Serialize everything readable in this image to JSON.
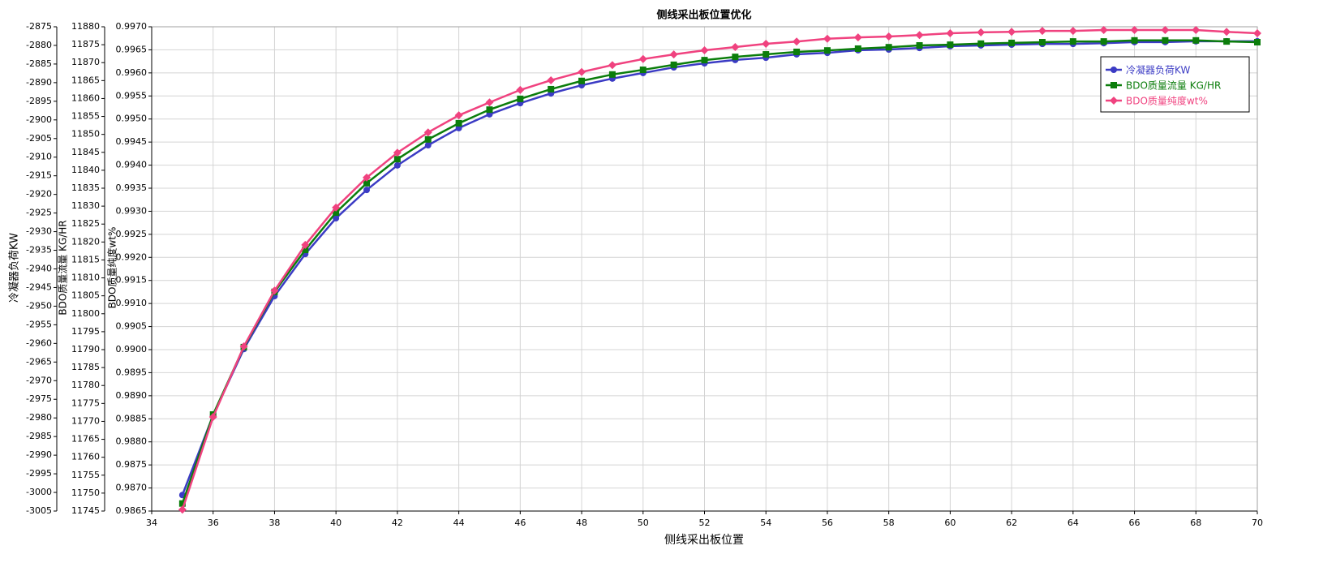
{
  "chart_data": {
    "type": "line",
    "title": "侧线采出板位置优化",
    "xlabel": "侧线采出板位置",
    "ylabel": "冷凝器负荷KW",
    "y2label": "BDO质量流量 KG/HR",
    "y3label": "BDO质量纯度wt%",
    "x": [
      35,
      36,
      37,
      38,
      39,
      40,
      41,
      42,
      43,
      44,
      45,
      46,
      47,
      48,
      49,
      50,
      51,
      52,
      53,
      54,
      55,
      56,
      57,
      58,
      59,
      60,
      61,
      62,
      63,
      64,
      65,
      66,
      67,
      68,
      69,
      70
    ],
    "series": [
      {
        "name": "冷凝器负荷KW",
        "color": "#3b3bc4",
        "marker": "circle",
        "axis": "y",
        "values": [
          -3000.7,
          -2979.3,
          -2961.5,
          -2947.3,
          -2936,
          -2926.4,
          -2918.8,
          -2912.2,
          -2906.8,
          -2902.2,
          -2898.5,
          -2895.5,
          -2892.9,
          -2890.7,
          -2888.9,
          -2887.4,
          -2885.9,
          -2884.8,
          -2883.9,
          -2883.3,
          -2882.4,
          -2882,
          -2881.3,
          -2881.1,
          -2880.7,
          -2880.2,
          -2880,
          -2879.8,
          -2879.6,
          -2879.6,
          -2879.4,
          -2879.1,
          -2879.1,
          -2878.9,
          -2878.9,
          -2878.9
        ]
      },
      {
        "name": "BDO质量流量 KG/HR",
        "color": "#0b7d0b",
        "marker": "square",
        "axis": "y2",
        "values": [
          11747.1,
          11771.9,
          11790.7,
          11806.1,
          11817.8,
          11828.2,
          11836.4,
          11843.1,
          11848.6,
          11853.1,
          11856.9,
          11859.9,
          11862.6,
          11864.9,
          11866.7,
          11868,
          11869.4,
          11870.7,
          11871.6,
          11872.3,
          11873,
          11873.4,
          11873.9,
          11874.3,
          11874.8,
          11875,
          11875.3,
          11875.5,
          11875.7,
          11875.9,
          11875.9,
          11876.2,
          11876.2,
          11876.2,
          11875.9,
          11875.7
        ]
      },
      {
        "name": "BDO质量纯度wt%",
        "color": "#f0427f",
        "marker": "diamond",
        "axis": "y3",
        "values": [
          0.98653,
          0.98854,
          0.99007,
          0.99128,
          0.99227,
          0.99308,
          0.99373,
          0.99427,
          0.99471,
          0.99508,
          0.99536,
          0.99563,
          0.99584,
          0.99602,
          0.99617,
          0.9963,
          0.9964,
          0.99649,
          0.99656,
          0.99663,
          0.99668,
          0.99674,
          0.99677,
          0.99679,
          0.99682,
          0.99686,
          0.99688,
          0.99689,
          0.99691,
          0.99691,
          0.99693,
          0.99693,
          0.99693,
          0.99693,
          0.99689,
          0.99686
        ]
      }
    ],
    "xlim": [
      34,
      70
    ],
    "xticks": [
      34,
      36,
      38,
      40,
      42,
      44,
      46,
      48,
      50,
      52,
      54,
      56,
      58,
      60,
      62,
      64,
      66,
      68,
      70
    ],
    "ylim": [
      -3005,
      -2875
    ],
    "yticks": [
      -3005,
      -3000,
      -2995,
      -2990,
      -2985,
      -2980,
      -2975,
      -2970,
      -2965,
      -2960,
      -2955,
      -2950,
      -2945,
      -2940,
      -2935,
      -2930,
      -2925,
      -2920,
      -2915,
      -2910,
      -2905,
      -2900,
      -2895,
      -2890,
      -2885,
      -2880,
      -2875
    ],
    "y2lim": [
      11745,
      11880
    ],
    "y2ticks": [
      11745,
      11750,
      11755,
      11760,
      11765,
      11770,
      11775,
      11780,
      11785,
      11790,
      11795,
      11800,
      11805,
      11810,
      11815,
      11820,
      11825,
      11830,
      11835,
      11840,
      11845,
      11850,
      11855,
      11860,
      11865,
      11870,
      11875,
      11880
    ],
    "y3lim": [
      0.9865,
      0.997
    ],
    "y3ticks": [
      0.9865,
      {
        "value": 0.987,
        "label": "0.9870"
      },
      0.9875,
      {
        "value": 0.988,
        "label": "0.9880"
      },
      0.9885,
      {
        "value": 0.989,
        "label": "0.9890"
      },
      0.9895,
      {
        "value": 0.99,
        "label": "0.9900"
      },
      0.9905,
      {
        "value": 0.991,
        "label": "0.9910"
      },
      0.9915,
      {
        "value": 0.992,
        "label": "0.9920"
      },
      0.9925,
      {
        "value": 0.993,
        "label": "0.9930"
      },
      0.9935,
      {
        "value": 0.994,
        "label": "0.9940"
      },
      0.9945,
      {
        "value": 0.995,
        "label": "0.9950"
      },
      0.9955,
      {
        "value": 0.996,
        "label": "0.9960"
      },
      0.9965,
      {
        "value": 0.997,
        "label": "0.9970"
      }
    ],
    "grid": true,
    "legend": "upper right"
  }
}
